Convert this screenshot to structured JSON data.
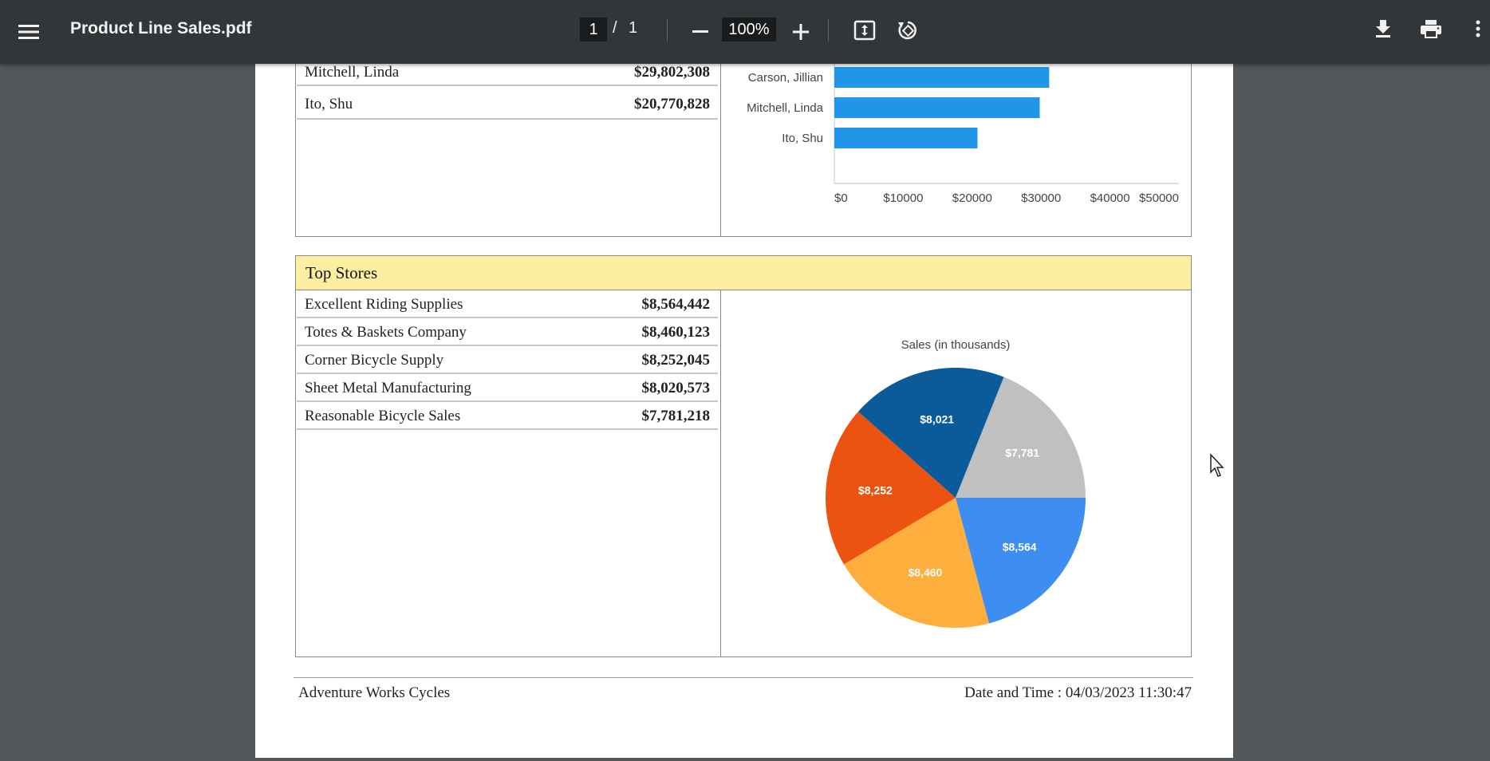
{
  "toolbar": {
    "title": "Product Line Sales.pdf",
    "page_current": "1",
    "page_separator": "/",
    "page_total": "1",
    "zoom": "100%"
  },
  "top_salespeople": {
    "rows": [
      {
        "name": "Mitchell, Linda",
        "value": "$29,802,308"
      },
      {
        "name": "Ito, Shu",
        "value": "$20,770,828"
      }
    ]
  },
  "top_stores": {
    "title": "Top Stores",
    "rows": [
      {
        "name": "Excellent Riding Supplies",
        "value": "$8,564,442"
      },
      {
        "name": "Totes & Baskets Company",
        "value": "$8,460,123"
      },
      {
        "name": "Corner Bicycle Supply",
        "value": "$8,252,045"
      },
      {
        "name": "Sheet Metal Manufacturing",
        "value": "$8,020,573"
      },
      {
        "name": "Reasonable Bicycle Sales",
        "value": "$7,781,218"
      }
    ]
  },
  "chart_data": [
    {
      "type": "bar",
      "orientation": "horizontal",
      "categories": [
        "Carson, Jillian",
        "Mitchell, Linda",
        "Ito, Shu"
      ],
      "values": [
        31174083,
        29802308,
        20770828
      ],
      "clipped_top_bar_value": 35500000,
      "xlim": [
        0,
        50000
      ],
      "x_ticks": [
        "$0",
        "$10000",
        "$20000",
        "$30000",
        "$40000",
        "$50000"
      ],
      "color": "#2196e8"
    },
    {
      "type": "pie",
      "title": "Sales (in thousands)",
      "slices": [
        {
          "label": "$8,564",
          "value": 8564,
          "color": "#3d8ef0"
        },
        {
          "label": "$8,460",
          "value": 8460,
          "color": "#fdae3d"
        },
        {
          "label": "$8,252",
          "value": 8252,
          "color": "#ec5210"
        },
        {
          "label": "$8,021",
          "value": 8021,
          "color": "#0b5b9a"
        },
        {
          "label": "$7,781",
          "value": 7781,
          "color": "#c0c0c0"
        }
      ]
    }
  ],
  "footer": {
    "company": "Adventure Works Cycles",
    "datetime": "Date and Time : 04/03/2023 11:30:47"
  }
}
